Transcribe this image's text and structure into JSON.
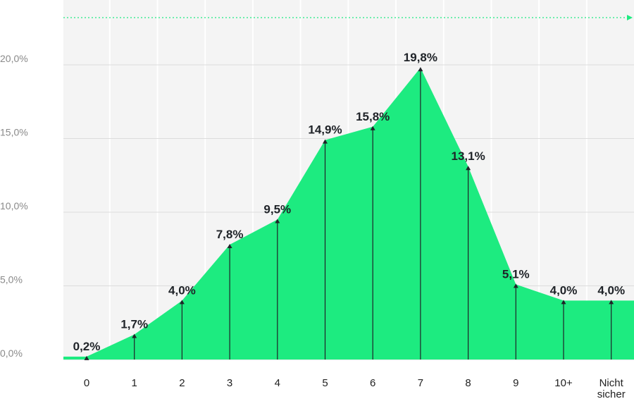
{
  "chart_data": {
    "type": "area",
    "categories": [
      "0",
      "1",
      "2",
      "3",
      "4",
      "5",
      "6",
      "7",
      "8",
      "9",
      "10+",
      "Nicht sicher"
    ],
    "category_lines": [
      [
        "0"
      ],
      [
        "1"
      ],
      [
        "2"
      ],
      [
        "3"
      ],
      [
        "4"
      ],
      [
        "5"
      ],
      [
        "6"
      ],
      [
        "7"
      ],
      [
        "8"
      ],
      [
        "9"
      ],
      [
        "10+"
      ],
      [
        "Nicht",
        "sicher"
      ]
    ],
    "values": [
      0.2,
      1.7,
      4.0,
      7.8,
      9.5,
      14.9,
      15.8,
      19.8,
      13.1,
      5.1,
      4.0,
      4.0
    ],
    "data_labels": [
      "0,2%",
      "1,7%",
      "4,0%",
      "7,8%",
      "9,5%",
      "14,9%",
      "15,8%",
      "19,8%",
      "13,1%",
      "5,1%",
      "4,0%",
      "4,0%"
    ],
    "yticks": [
      0,
      5,
      10,
      15,
      20
    ],
    "ytick_labels": [
      "0,0%",
      "5,0%",
      "10,0%",
      "15,0%",
      "20,0%"
    ],
    "ylim": [
      0,
      24
    ],
    "title": "",
    "xlabel": "",
    "ylabel": "",
    "grid": true
  },
  "colors": {
    "area": "#1deb80",
    "plot_bg": "#f4f4f4",
    "gridline": "#dcdcdc",
    "stem": "#1f2328",
    "dotted_arrow": "#1deb80"
  }
}
